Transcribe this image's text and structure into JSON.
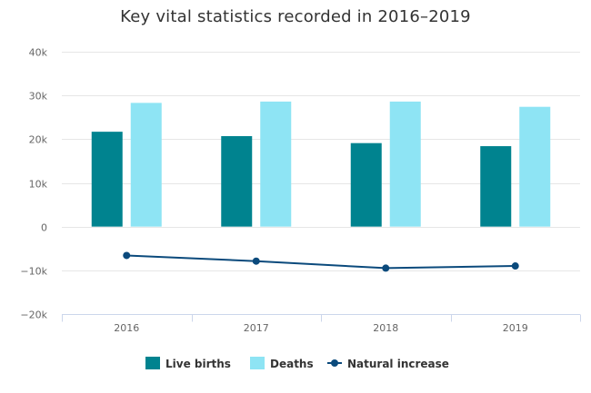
{
  "chart_data": {
    "type": "bar",
    "title": "Key vital statistics recorded in 2016–2019",
    "categories": [
      "2016",
      "2017",
      "2018",
      "2019"
    ],
    "ylim": [
      -20000,
      40000
    ],
    "yticks": [
      40000,
      30000,
      20000,
      10000,
      0,
      -10000,
      -20000
    ],
    "ytick_labels": [
      "40k",
      "30k",
      "20k",
      "10k",
      "0",
      "−10k",
      "−20k"
    ],
    "grid": true,
    "legend_position": "bottom",
    "series": [
      {
        "name": "Live births",
        "type": "bar",
        "color": "#00838f",
        "values": [
          21700,
          20700,
          19100,
          18400
        ]
      },
      {
        "name": "Deaths",
        "type": "bar",
        "color": "#8ee4f4",
        "values": [
          28300,
          28600,
          28600,
          27400
        ]
      },
      {
        "name": "Natural increase",
        "type": "line",
        "color": "#0b4a7c",
        "values": [
          -6600,
          -7900,
          -9500,
          -9000
        ]
      }
    ]
  }
}
